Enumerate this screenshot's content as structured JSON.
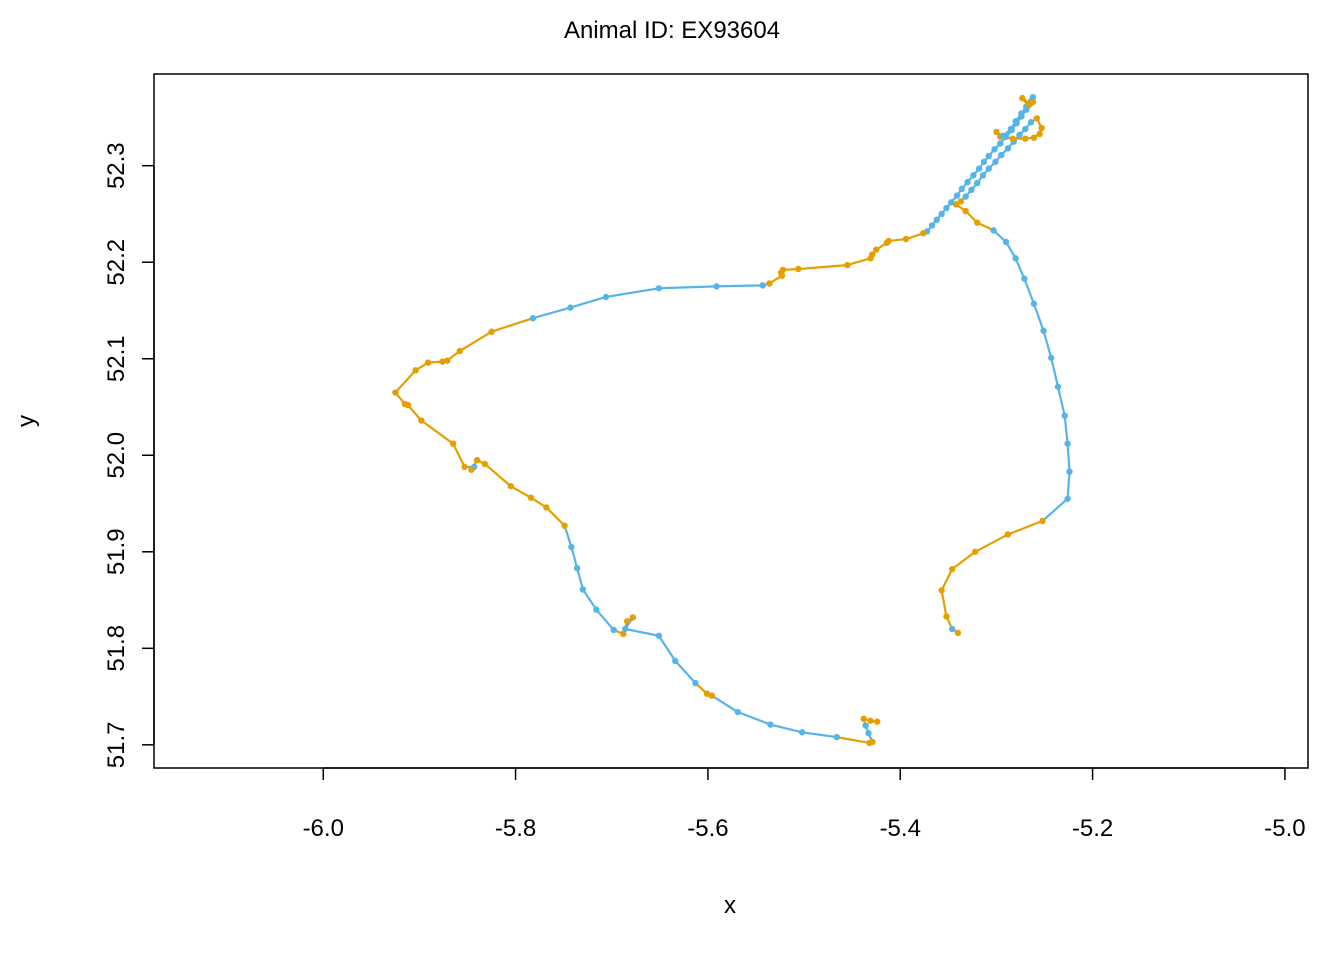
{
  "chart_data": {
    "type": "line",
    "title": "Animal ID: EX93604",
    "xlabel": "x",
    "ylabel": "y",
    "xlim": [
      -6.176,
      -4.976
    ],
    "ylim": [
      51.676,
      52.395
    ],
    "xticks": [
      -6.0,
      -5.8,
      -5.6,
      -5.4,
      -5.2,
      -5.0
    ],
    "xtick_labels": [
      "-6.0",
      "-5.8",
      "-5.6",
      "-5.4",
      "-5.2",
      "-5.0"
    ],
    "yticks": [
      51.7,
      51.8,
      51.9,
      52.0,
      52.1,
      52.2,
      52.3
    ],
    "ytick_labels": [
      "51.7",
      "51.8",
      "51.9",
      "52.0",
      "52.1",
      "52.2",
      "52.3"
    ],
    "grid": false,
    "legend": "none",
    "colors": {
      "blue": "#56B4E9",
      "orange": "#E69F00"
    },
    "track": [
      {
        "x": -5.34,
        "y": 51.816,
        "c": "orange"
      },
      {
        "x": -5.346,
        "y": 51.82,
        "c": "blue"
      },
      {
        "x": -5.352,
        "y": 51.833,
        "c": "orange"
      },
      {
        "x": -5.357,
        "y": 51.86,
        "c": "orange"
      },
      {
        "x": -5.346,
        "y": 51.882,
        "c": "orange"
      },
      {
        "x": -5.322,
        "y": 51.9,
        "c": "orange"
      },
      {
        "x": -5.288,
        "y": 51.918,
        "c": "orange"
      },
      {
        "x": -5.252,
        "y": 51.932,
        "c": "orange"
      },
      {
        "x": -5.226,
        "y": 51.955,
        "c": "blue"
      },
      {
        "x": -5.224,
        "y": 51.983,
        "c": "blue"
      },
      {
        "x": -5.226,
        "y": 52.012,
        "c": "blue"
      },
      {
        "x": -5.229,
        "y": 52.041,
        "c": "blue"
      },
      {
        "x": -5.236,
        "y": 52.071,
        "c": "blue"
      },
      {
        "x": -5.243,
        "y": 52.101,
        "c": "blue"
      },
      {
        "x": -5.251,
        "y": 52.129,
        "c": "blue"
      },
      {
        "x": -5.261,
        "y": 52.157,
        "c": "blue"
      },
      {
        "x": -5.271,
        "y": 52.183,
        "c": "blue"
      },
      {
        "x": -5.28,
        "y": 52.204,
        "c": "blue"
      },
      {
        "x": -5.29,
        "y": 52.221,
        "c": "blue"
      },
      {
        "x": -5.303,
        "y": 52.233,
        "c": "blue"
      },
      {
        "x": -5.32,
        "y": 52.241,
        "c": "orange"
      },
      {
        "x": -5.332,
        "y": 52.253,
        "c": "orange"
      },
      {
        "x": -5.342,
        "y": 52.26,
        "c": "orange"
      },
      {
        "x": -5.337,
        "y": 52.263,
        "c": "orange"
      },
      {
        "x": -5.332,
        "y": 52.268,
        "c": "blue"
      },
      {
        "x": -5.326,
        "y": 52.275,
        "c": "blue"
      },
      {
        "x": -5.32,
        "y": 52.282,
        "c": "blue"
      },
      {
        "x": -5.314,
        "y": 52.29,
        "c": "blue"
      },
      {
        "x": -5.308,
        "y": 52.297,
        "c": "blue"
      },
      {
        "x": -5.301,
        "y": 52.304,
        "c": "blue"
      },
      {
        "x": -5.295,
        "y": 52.311,
        "c": "blue"
      },
      {
        "x": -5.288,
        "y": 52.318,
        "c": "blue"
      },
      {
        "x": -5.282,
        "y": 52.325,
        "c": "blue"
      },
      {
        "x": -5.276,
        "y": 52.332,
        "c": "blue"
      },
      {
        "x": -5.27,
        "y": 52.338,
        "c": "blue"
      },
      {
        "x": -5.264,
        "y": 52.345,
        "c": "blue"
      },
      {
        "x": -5.258,
        "y": 52.349,
        "c": "orange"
      },
      {
        "x": -5.253,
        "y": 52.339,
        "c": "orange"
      },
      {
        "x": -5.255,
        "y": 52.333,
        "c": "orange"
      },
      {
        "x": -5.261,
        "y": 52.329,
        "c": "orange"
      },
      {
        "x": -5.27,
        "y": 52.328,
        "c": "orange"
      },
      {
        "x": -5.283,
        "y": 52.328,
        "c": "orange"
      },
      {
        "x": -5.296,
        "y": 52.33,
        "c": "orange"
      },
      {
        "x": -5.3,
        "y": 52.335,
        "c": "orange"
      },
      {
        "x": -5.293,
        "y": 52.331,
        "c": "blue"
      },
      {
        "x": -5.285,
        "y": 52.338,
        "c": "blue"
      },
      {
        "x": -5.28,
        "y": 52.346,
        "c": "blue"
      },
      {
        "x": -5.274,
        "y": 52.354,
        "c": "blue"
      },
      {
        "x": -5.269,
        "y": 52.361,
        "c": "blue"
      },
      {
        "x": -5.264,
        "y": 52.367,
        "c": "blue"
      },
      {
        "x": -5.262,
        "y": 52.371,
        "c": "blue"
      },
      {
        "x": -5.265,
        "y": 52.364,
        "c": "orange"
      },
      {
        "x": -5.273,
        "y": 52.37,
        "c": "orange"
      },
      {
        "x": -5.267,
        "y": 52.362,
        "c": "orange"
      },
      {
        "x": -5.262,
        "y": 52.366,
        "c": "orange"
      },
      {
        "x": -5.269,
        "y": 52.358,
        "c": "blue"
      },
      {
        "x": -5.274,
        "y": 52.351,
        "c": "blue"
      },
      {
        "x": -5.279,
        "y": 52.344,
        "c": "blue"
      },
      {
        "x": -5.284,
        "y": 52.337,
        "c": "blue"
      },
      {
        "x": -5.29,
        "y": 52.33,
        "c": "blue"
      },
      {
        "x": -5.296,
        "y": 52.323,
        "c": "blue"
      },
      {
        "x": -5.302,
        "y": 52.317,
        "c": "blue"
      },
      {
        "x": -5.308,
        "y": 52.31,
        "c": "blue"
      },
      {
        "x": -5.313,
        "y": 52.304,
        "c": "blue"
      },
      {
        "x": -5.318,
        "y": 52.297,
        "c": "blue"
      },
      {
        "x": -5.324,
        "y": 52.29,
        "c": "blue"
      },
      {
        "x": -5.33,
        "y": 52.283,
        "c": "blue"
      },
      {
        "x": -5.336,
        "y": 52.276,
        "c": "blue"
      },
      {
        "x": -5.341,
        "y": 52.269,
        "c": "blue"
      },
      {
        "x": -5.347,
        "y": 52.262,
        "c": "blue"
      },
      {
        "x": -5.352,
        "y": 52.256,
        "c": "blue"
      },
      {
        "x": -5.357,
        "y": 52.25,
        "c": "blue"
      },
      {
        "x": -5.362,
        "y": 52.244,
        "c": "blue"
      },
      {
        "x": -5.367,
        "y": 52.238,
        "c": "blue"
      },
      {
        "x": -5.372,
        "y": 52.232,
        "c": "blue"
      },
      {
        "x": -5.376,
        "y": 52.23,
        "c": "orange"
      },
      {
        "x": -5.394,
        "y": 52.224,
        "c": "orange"
      },
      {
        "x": -5.412,
        "y": 52.222,
        "c": "orange"
      },
      {
        "x": -5.414,
        "y": 52.22,
        "c": "orange"
      },
      {
        "x": -5.425,
        "y": 52.213,
        "c": "orange"
      },
      {
        "x": -5.429,
        "y": 52.208,
        "c": "orange"
      },
      {
        "x": -5.431,
        "y": 52.204,
        "c": "orange"
      },
      {
        "x": -5.455,
        "y": 52.197,
        "c": "orange"
      },
      {
        "x": -5.506,
        "y": 52.193,
        "c": "orange"
      },
      {
        "x": -5.522,
        "y": 52.192,
        "c": "orange"
      },
      {
        "x": -5.524,
        "y": 52.189,
        "c": "orange"
      },
      {
        "x": -5.523,
        "y": 52.186,
        "c": "orange"
      },
      {
        "x": -5.536,
        "y": 52.178,
        "c": "orange"
      },
      {
        "x": -5.543,
        "y": 52.176,
        "c": "blue"
      },
      {
        "x": -5.591,
        "y": 52.175,
        "c": "blue"
      },
      {
        "x": -5.651,
        "y": 52.173,
        "c": "blue"
      },
      {
        "x": -5.706,
        "y": 52.164,
        "c": "blue"
      },
      {
        "x": -5.743,
        "y": 52.153,
        "c": "blue"
      },
      {
        "x": -5.782,
        "y": 52.142,
        "c": "blue"
      },
      {
        "x": -5.825,
        "y": 52.128,
        "c": "orange"
      },
      {
        "x": -5.858,
        "y": 52.108,
        "c": "orange"
      },
      {
        "x": -5.871,
        "y": 52.098,
        "c": "orange"
      },
      {
        "x": -5.876,
        "y": 52.097,
        "c": "orange"
      },
      {
        "x": -5.891,
        "y": 52.096,
        "c": "orange"
      },
      {
        "x": -5.904,
        "y": 52.088,
        "c": "orange"
      },
      {
        "x": -5.925,
        "y": 52.065,
        "c": "orange"
      },
      {
        "x": -5.915,
        "y": 52.053,
        "c": "orange"
      },
      {
        "x": -5.912,
        "y": 52.052,
        "c": "orange"
      },
      {
        "x": -5.898,
        "y": 52.036,
        "c": "orange"
      },
      {
        "x": -5.865,
        "y": 52.012,
        "c": "orange"
      },
      {
        "x": -5.853,
        "y": 51.988,
        "c": "orange"
      },
      {
        "x": -5.843,
        "y": 51.988,
        "c": "blue"
      },
      {
        "x": -5.846,
        "y": 51.985,
        "c": "orange"
      },
      {
        "x": -5.84,
        "y": 51.995,
        "c": "orange"
      },
      {
        "x": -5.832,
        "y": 51.991,
        "c": "orange"
      },
      {
        "x": -5.805,
        "y": 51.968,
        "c": "orange"
      },
      {
        "x": -5.784,
        "y": 51.956,
        "c": "orange"
      },
      {
        "x": -5.768,
        "y": 51.946,
        "c": "orange"
      },
      {
        "x": -5.749,
        "y": 51.927,
        "c": "orange"
      },
      {
        "x": -5.742,
        "y": 51.905,
        "c": "blue"
      },
      {
        "x": -5.736,
        "y": 51.883,
        "c": "blue"
      },
      {
        "x": -5.73,
        "y": 51.861,
        "c": "blue"
      },
      {
        "x": -5.716,
        "y": 51.84,
        "c": "blue"
      },
      {
        "x": -5.698,
        "y": 51.819,
        "c": "blue"
      },
      {
        "x": -5.688,
        "y": 51.815,
        "c": "orange"
      },
      {
        "x": -5.684,
        "y": 51.828,
        "c": "orange"
      },
      {
        "x": -5.678,
        "y": 51.832,
        "c": "orange"
      },
      {
        "x": -5.686,
        "y": 51.82,
        "c": "blue"
      },
      {
        "x": -5.651,
        "y": 51.813,
        "c": "blue"
      },
      {
        "x": -5.634,
        "y": 51.787,
        "c": "blue"
      },
      {
        "x": -5.613,
        "y": 51.764,
        "c": "blue"
      },
      {
        "x": -5.601,
        "y": 51.753,
        "c": "orange"
      },
      {
        "x": -5.596,
        "y": 51.751,
        "c": "orange"
      },
      {
        "x": -5.569,
        "y": 51.734,
        "c": "blue"
      },
      {
        "x": -5.535,
        "y": 51.721,
        "c": "blue"
      },
      {
        "x": -5.502,
        "y": 51.713,
        "c": "blue"
      },
      {
        "x": -5.466,
        "y": 51.708,
        "c": "blue"
      },
      {
        "x": -5.432,
        "y": 51.702,
        "c": "orange"
      },
      {
        "x": -5.429,
        "y": 51.703,
        "c": "orange"
      },
      {
        "x": -5.433,
        "y": 51.712,
        "c": "blue"
      },
      {
        "x": -5.436,
        "y": 51.72,
        "c": "blue"
      },
      {
        "x": -5.438,
        "y": 51.727,
        "c": "orange"
      },
      {
        "x": -5.431,
        "y": 51.725,
        "c": "orange"
      },
      {
        "x": -5.424,
        "y": 51.724,
        "c": "orange"
      }
    ]
  }
}
